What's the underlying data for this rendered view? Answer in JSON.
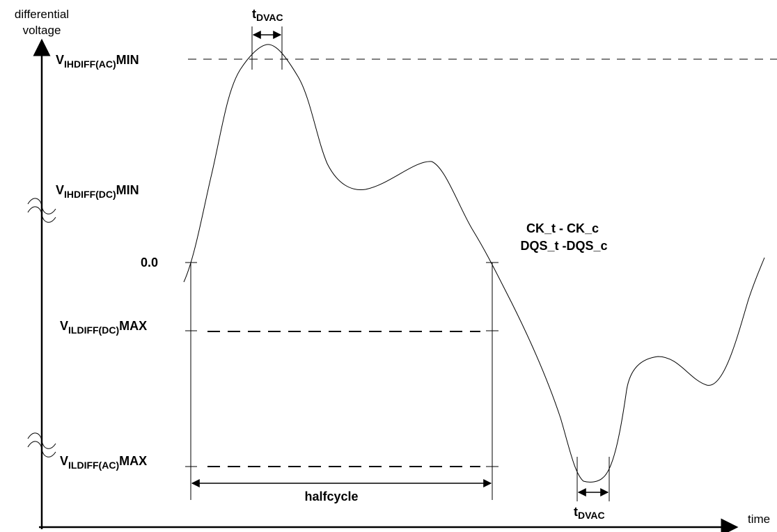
{
  "axes": {
    "y_label_line1": "differential",
    "y_label_line2": "voltage",
    "x_label": "time"
  },
  "levels": {
    "vih_ac": {
      "main": "V",
      "sub": "IHDIFF(AC)",
      "suffix": "MIN"
    },
    "vih_dc": {
      "main": "V",
      "sub": "IHDIFF(DC)",
      "suffix": "MIN"
    },
    "zero": "0.0",
    "vil_dc": {
      "main": "V",
      "sub": "ILDIFF(DC)",
      "suffix": "MAX"
    },
    "vil_ac": {
      "main": "V",
      "sub": "ILDIFF(AC)",
      "suffix": "MAX"
    }
  },
  "timing": {
    "tdvac_top": {
      "main": "t",
      "sub": "DVAC"
    },
    "tdvac_bottom": {
      "main": "t",
      "sub": "DVAC"
    },
    "halfcycle": "halfcycle"
  },
  "signals": {
    "line1": "CK_t - CK_c",
    "line2": "DQS_t -DQS_c"
  }
}
